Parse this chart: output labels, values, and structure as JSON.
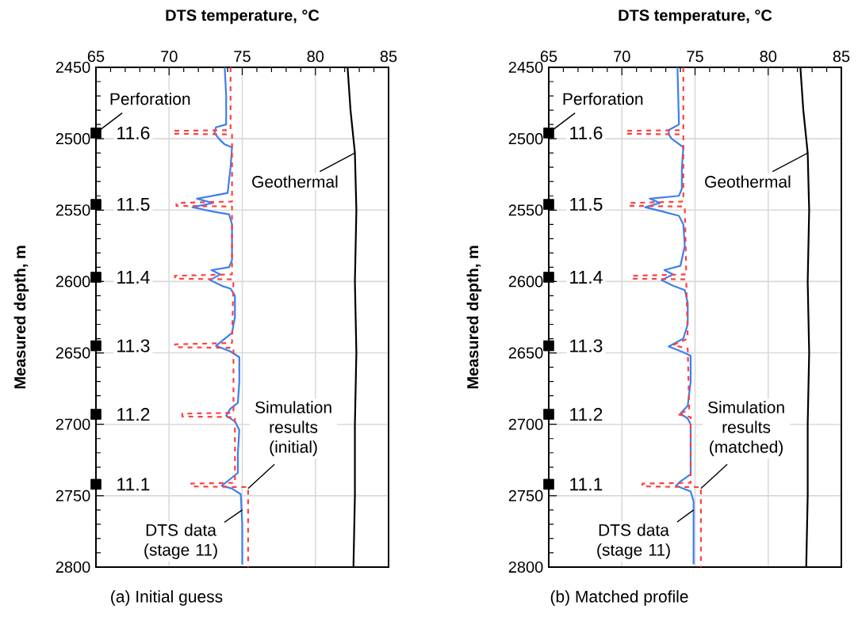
{
  "chart_data": [
    {
      "type": "line",
      "title": "(a) Initial guess",
      "xlabel": "DTS temperature, °C",
      "ylabel": "Measured depth, m",
      "xlim": [
        65,
        85
      ],
      "xticks": [
        65,
        70,
        75,
        80,
        85
      ],
      "ylim": [
        2800,
        2450
      ],
      "yticks": [
        2450,
        2500,
        2550,
        2600,
        2650,
        2700,
        2750,
        2800
      ],
      "grid": true,
      "annotations": [
        {
          "text": "Perforation",
          "x": 65,
          "y": 2496
        },
        {
          "text": "11.6",
          "x": 65,
          "y": 2496
        },
        {
          "text": "11.5",
          "x": 65,
          "y": 2546
        },
        {
          "text": "11.4",
          "x": 65,
          "y": 2597
        },
        {
          "text": "11.3",
          "x": 65,
          "y": 2645
        },
        {
          "text": "11.2",
          "x": 65,
          "y": 2693
        },
        {
          "text": "11.1",
          "x": 65,
          "y": 2742
        },
        {
          "text": "Geothermal",
          "x": 82.7,
          "y": 2510
        },
        {
          "text": "Simulation results (initial)",
          "x": 75.4,
          "y": 2745
        },
        {
          "text": "DTS data (stage 11)",
          "x": 75.0,
          "y": 2760
        }
      ],
      "series": [
        {
          "type": "line",
          "color": "#3c7ff0",
          "line_style": "solid",
          "x": [
            73.8,
            73.9,
            73.9,
            73.2,
            73.1,
            73.4,
            73.8,
            74.3,
            74.2,
            74.0,
            71.9,
            73.0,
            71.6,
            73.0,
            74.1,
            74.3,
            74.3,
            74.1,
            72.9,
            73.5,
            72.8,
            73.6,
            74.2,
            74.5,
            74.5,
            74.3,
            73.2,
            74.2,
            74.8,
            74.8,
            74.7,
            74.2,
            73.9,
            74.5,
            74.8,
            74.7,
            74.7,
            74.1,
            73.6,
            74.3,
            74.9,
            75.0,
            75.0
          ],
          "values": [
            2450,
            2470,
            2490,
            2492,
            2496,
            2500,
            2504,
            2506,
            2520,
            2538,
            2542,
            2545,
            2548,
            2551,
            2553,
            2560,
            2585,
            2590,
            2592,
            2595,
            2599,
            2603,
            2605,
            2610,
            2625,
            2636,
            2645,
            2649,
            2653,
            2670,
            2685,
            2689,
            2694,
            2698,
            2704,
            2720,
            2734,
            2739,
            2743,
            2745,
            2749,
            2770,
            2798
          ]
        },
        {
          "type": "line",
          "color": "#ff4040",
          "line_style": "dashed",
          "x": [
            74.2,
            74.2,
            70.3,
            70.3,
            74.3,
            74.3,
            70.5,
            70.5,
            74.3,
            74.3,
            70.4,
            70.4,
            74.4,
            74.3,
            70.4,
            70.4,
            74.4,
            74.4,
            70.9,
            70.9,
            74.5,
            74.5,
            71.5,
            71.5,
            75.4,
            75.4
          ],
          "values": [
            2450,
            2494,
            2494.5,
            2496.5,
            2497,
            2544,
            2545,
            2547,
            2547.5,
            2595,
            2596,
            2598,
            2598.5,
            2643,
            2644,
            2646,
            2646.5,
            2692,
            2692.5,
            2694.5,
            2695,
            2741,
            2741.5,
            2743.5,
            2744,
            2800
          ]
        },
        {
          "type": "line",
          "color": "#000000",
          "line_style": "solid",
          "x": [
            82.2,
            82.4,
            82.6,
            82.7,
            82.8,
            82.7,
            82.8,
            82.7,
            82.7,
            82.6
          ],
          "values": [
            2450,
            2480,
            2500,
            2510,
            2550,
            2600,
            2650,
            2700,
            2750,
            2800
          ]
        },
        {
          "type": "scatter",
          "marker": "square",
          "color": "#000000",
          "x": [
            65,
            65,
            65,
            65,
            65,
            65
          ],
          "values": [
            2496,
            2546,
            2597,
            2645,
            2693,
            2742
          ]
        }
      ]
    },
    {
      "type": "line",
      "title": "(b) Matched profile",
      "xlabel": "DTS temperature, °C",
      "ylabel": "Measured depth, m",
      "xlim": [
        65,
        85
      ],
      "xticks": [
        65,
        70,
        75,
        80,
        85
      ],
      "ylim": [
        2800,
        2450
      ],
      "yticks": [
        2450,
        2500,
        2550,
        2600,
        2650,
        2700,
        2750,
        2800
      ],
      "grid": true,
      "annotations": [
        {
          "text": "Perforation",
          "x": 65,
          "y": 2496
        },
        {
          "text": "11.6",
          "x": 65,
          "y": 2496
        },
        {
          "text": "11.5",
          "x": 65,
          "y": 2546
        },
        {
          "text": "11.4",
          "x": 65,
          "y": 2597
        },
        {
          "text": "11.3",
          "x": 65,
          "y": 2645
        },
        {
          "text": "11.2",
          "x": 65,
          "y": 2693
        },
        {
          "text": "11.1",
          "x": 65,
          "y": 2742
        },
        {
          "text": "Geothermal",
          "x": 82.7,
          "y": 2510
        },
        {
          "text": "Simulation results (matched)",
          "x": 75.4,
          "y": 2745
        },
        {
          "text": "DTS data (stage 11)",
          "x": 74.9,
          "y": 2760
        }
      ],
      "series": [
        {
          "type": "line",
          "color": "#3c7ff0",
          "line_style": "solid",
          "x": [
            73.8,
            73.9,
            73.2,
            73.2,
            73.4,
            74.2,
            74.1,
            74.1,
            73.9,
            71.9,
            72.6,
            71.6,
            72.8,
            73.9,
            74.2,
            74.3,
            74.0,
            72.9,
            73.5,
            72.7,
            73.5,
            74.3,
            74.5,
            74.5,
            74.2,
            73.2,
            74.2,
            74.7,
            74.7,
            74.5,
            74.0,
            74.5,
            74.7,
            74.7,
            74.0,
            73.7,
            74.7,
            74.9,
            74.9
          ],
          "values": [
            2450,
            2490,
            2494,
            2497,
            2500,
            2506,
            2520,
            2535,
            2540,
            2542,
            2545,
            2548,
            2551,
            2554,
            2560,
            2575,
            2589,
            2592,
            2595,
            2599,
            2603,
            2606,
            2615,
            2630,
            2640,
            2645.5,
            2649.5,
            2652,
            2670,
            2687,
            2692.5,
            2696,
            2700,
            2735,
            2740,
            2743,
            2747,
            2754,
            2798
          ]
        },
        {
          "type": "line",
          "color": "#ff4040",
          "line_style": "dashed",
          "x": [
            74.2,
            74.2,
            70.3,
            70.3,
            74.2,
            74.2,
            70.5,
            70.5,
            74.3,
            74.4,
            70.7,
            70.7,
            74.4,
            74.5,
            73.5,
            74.5,
            74.6,
            73.8,
            74.7,
            74.7,
            71.4,
            71.4,
            75.4,
            75.4
          ],
          "values": [
            2450,
            2494,
            2494.5,
            2496.5,
            2497,
            2544,
            2545,
            2547,
            2547.5,
            2595,
            2596,
            2598,
            2598.5,
            2640,
            2644.5,
            2647,
            2690,
            2693,
            2695,
            2741,
            2741.5,
            2743.5,
            2744,
            2800
          ]
        },
        {
          "type": "line",
          "color": "#000000",
          "line_style": "solid",
          "x": [
            82.2,
            82.4,
            82.6,
            82.7,
            82.8,
            82.7,
            82.8,
            82.7,
            82.7,
            82.6
          ],
          "values": [
            2450,
            2480,
            2500,
            2510,
            2550,
            2600,
            2650,
            2700,
            2750,
            2800
          ]
        },
        {
          "type": "scatter",
          "marker": "square",
          "color": "#000000",
          "x": [
            65,
            65,
            65,
            65,
            65,
            65
          ],
          "values": [
            2496,
            2546,
            2597,
            2645,
            2693,
            2742
          ]
        }
      ]
    }
  ]
}
